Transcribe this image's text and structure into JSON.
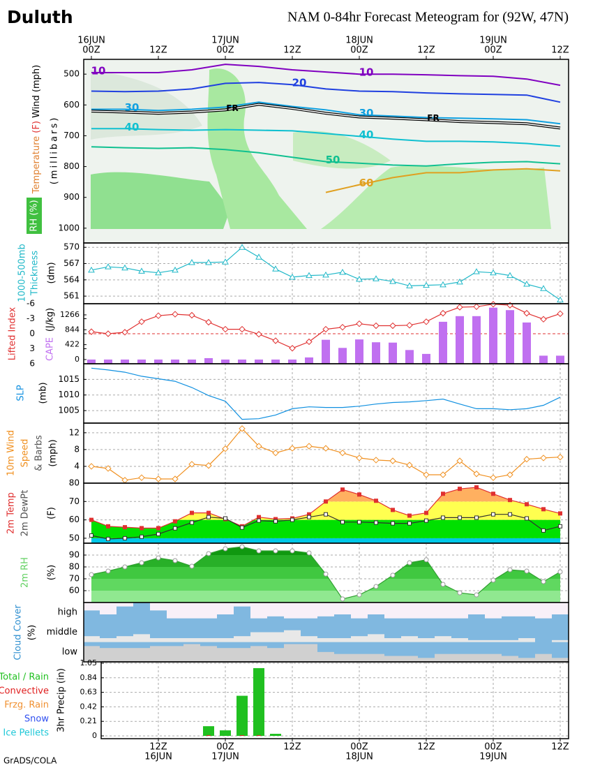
{
  "header": {
    "location": "Duluth",
    "title": "NAM 0-84hr Forecast Meteogram for (92W, 47N)"
  },
  "footer": "GrADS/COLA",
  "time_axis": {
    "hours": [
      "00Z",
      null,
      null,
      null,
      "12Z",
      null,
      null,
      null,
      "00Z",
      null,
      null,
      null,
      "12Z",
      null,
      null,
      null,
      "00Z",
      null,
      null,
      null,
      "12Z",
      null,
      null,
      null,
      "00Z",
      null,
      null,
      null,
      "12Z"
    ],
    "top_days": [
      "16JUN",
      null,
      null,
      null,
      null,
      null,
      null,
      null,
      "17JUN",
      null,
      null,
      null,
      null,
      null,
      null,
      null,
      "18JUN",
      null,
      null,
      null,
      null,
      null,
      null,
      null,
      "19JUN",
      null,
      null,
      null,
      null
    ],
    "bottom_hours": [
      null,
      null,
      null,
      null,
      "12Z",
      null,
      null,
      null,
      "00Z",
      null,
      null,
      null,
      "12Z",
      null,
      null,
      null,
      "00Z",
      null,
      null,
      null,
      "12Z",
      null,
      null,
      null,
      "00Z",
      null,
      null,
      null,
      "12Z"
    ],
    "bottom_days": [
      null,
      null,
      null,
      null,
      "16JUN",
      null,
      null,
      null,
      "17JUN",
      null,
      null,
      null,
      null,
      null,
      null,
      null,
      "18JUN",
      null,
      null,
      null,
      null,
      null,
      null,
      null,
      "19JUN",
      null,
      null,
      null,
      null
    ]
  },
  "chart_data": [
    {
      "type": "contour",
      "axis_labels": [
        "Temperature",
        "(F)",
        "Wind (mph)",
        "(millibars)",
        "RH (%)"
      ],
      "ylim": [
        1048,
        452
      ],
      "yticks": [
        500,
        600,
        700,
        800,
        900,
        1000
      ],
      "series": [
        {
          "name": "10",
          "color": "#8000c0",
          "values": [
            495,
            495,
            495,
            486,
            468,
            475,
            486,
            493,
            500,
            500,
            502,
            505,
            507,
            516,
            536
          ]
        },
        {
          "name": "20",
          "color": "#2040e0",
          "values": [
            555,
            557,
            555,
            548,
            530,
            527,
            534,
            548,
            555,
            557,
            561,
            564,
            566,
            568,
            591
          ]
        },
        {
          "name": "30",
          "color": "#10a0e0",
          "values": [
            614,
            614,
            618,
            614,
            607,
            591,
            605,
            616,
            632,
            636,
            641,
            643,
            645,
            648,
            661
          ]
        },
        {
          "name": "FR",
          "color": "#000000",
          "line_style": "double",
          "values": [
            620,
            623,
            627,
            623,
            616,
            598,
            611,
            627,
            639,
            643,
            648,
            654,
            657,
            661,
            675
          ]
        },
        {
          "name": "40",
          "color": "#10c0d0",
          "values": [
            677,
            677,
            680,
            682,
            680,
            682,
            684,
            693,
            702,
            711,
            718,
            718,
            720,
            725,
            734
          ]
        },
        {
          "name": "50",
          "color": "#10c090",
          "values": [
            736,
            739,
            741,
            739,
            745,
            755,
            770,
            784,
            789,
            795,
            798,
            791,
            786,
            784,
            791
          ]
        },
        {
          "name": "60",
          "color": "#e0a020",
          "values": [
            null,
            null,
            null,
            null,
            null,
            null,
            null,
            884,
            859,
            836,
            820,
            820,
            811,
            807,
            814
          ]
        }
      ]
    },
    {
      "type": "line",
      "axis_labels": [
        "1000-500mb",
        "Thickness",
        "(dm)"
      ],
      "grid": true,
      "ylim": [
        559.6,
        570.8
      ],
      "yticks": [
        561,
        564,
        567,
        570
      ],
      "series": [
        {
          "name": "Thickness",
          "color": "#20b8c8",
          "marker": "triangle",
          "marker_fill": "#ffffff",
          "values": [
            565.8,
            566.4,
            566.2,
            565.6,
            565.3,
            565.8,
            567.2,
            567.2,
            567.3,
            570.0,
            568.2,
            566.0,
            564.5,
            564.8,
            564.9,
            565.4,
            564.1,
            564.2,
            563.7,
            562.9,
            563.0,
            563.1,
            563.6,
            565.5,
            565.3,
            564.8,
            563.2,
            562.4,
            560.3
          ]
        }
      ]
    },
    {
      "type": "line",
      "axis_labels": [
        "Lifted Index",
        "CAPE",
        "(J/kg)"
      ],
      "reference_line": 0,
      "ylim": [
        6,
        -6
      ],
      "yticks": [
        -6,
        -3,
        0,
        3,
        6
      ],
      "y2lim": [
        -119,
        1582
      ],
      "y2ticks": [
        0,
        422,
        844,
        1266
      ],
      "series": [
        {
          "name": "Lifted Index",
          "color": "#e03030",
          "marker": "diamond",
          "marker_fill": "#ffffff",
          "values": [
            -0.4,
            0,
            -0.3,
            -2.4,
            -3.6,
            -3.9,
            -3.7,
            -2.3,
            -0.9,
            -0.9,
            0.1,
            1.4,
            2.9,
            1.6,
            -0.9,
            -1.3,
            -2,
            -1.6,
            -1.6,
            -1.7,
            -2.4,
            -4.1,
            -5.3,
            -5.4,
            -5.9,
            -5.7,
            -4.1,
            -2.9,
            -4.0
          ]
        },
        {
          "name": "CAPE",
          "color": "#c070f0",
          "type": "bar",
          "axis": "y2",
          "values": [
            0,
            0,
            0,
            0,
            0,
            0,
            0,
            40,
            0,
            0,
            0,
            0,
            0,
            60,
            560,
            330,
            570,
            490,
            480,
            270,
            160,
            1070,
            1230,
            1230,
            1470,
            1400,
            1050,
            110,
            110
          ]
        }
      ]
    },
    {
      "type": "line",
      "axis_labels": [
        "SLP",
        "(mb)"
      ],
      "grid": true,
      "ylim": [
        1001,
        1020
      ],
      "yticks": [
        1005,
        1010,
        1015
      ],
      "series": [
        {
          "name": "SLP",
          "color": "#1090e0",
          "marker": "none",
          "values": [
            1018.6,
            1018,
            1017.3,
            1016,
            1015.2,
            1014.4,
            1012.4,
            1009.8,
            1008,
            1002.2,
            1002.4,
            1003.6,
            1005.6,
            1006.2,
            1006,
            1006,
            1006.4,
            1007.1,
            1007.6,
            1007.8,
            1008.2,
            1008.7,
            1007.1,
            1005.6,
            1005.6,
            1005.3,
            1005.6,
            1006.7,
            1009.3
          ]
        }
      ]
    },
    {
      "type": "line",
      "axis_labels": [
        "10m Wind",
        "Speed",
        "& Barbs",
        "(mph)"
      ],
      "grid": true,
      "ylim": [
        0,
        14.3
      ],
      "yticks": [
        4,
        8,
        12
      ],
      "series": [
        {
          "name": "10m Wind Speed",
          "color": "#f09020",
          "marker": "diamond",
          "marker_fill": "#ffffff",
          "values": [
            4,
            3.5,
            0.7,
            1.3,
            1,
            1,
            4.5,
            4.2,
            8.2,
            13,
            8.8,
            7.2,
            8.3,
            8.8,
            8.3,
            7.2,
            6,
            5.5,
            5.3,
            4.3,
            2,
            2,
            5.3,
            2.2,
            1.3,
            2,
            5.7,
            6,
            6.2
          ]
        }
      ]
    },
    {
      "type": "area",
      "axis_labels": [
        "2m Temp",
        "2m DewPt",
        "(F)"
      ],
      "grid": true,
      "ylim": [
        47.3,
        80
      ],
      "yticks": [
        50,
        60,
        70,
        80
      ],
      "fill_thresholds": [
        50,
        60,
        70
      ],
      "fill_colors": [
        "#00c8e8",
        "#00e000",
        "#ffff50",
        "#ffb060"
      ],
      "series": [
        {
          "name": "2m Temp",
          "color": "#e03030",
          "marker": "square",
          "marker_fill": "#e03030",
          "fill": true,
          "values": [
            60,
            56.5,
            56,
            55.5,
            55.5,
            59.2,
            63.8,
            63.8,
            60.4,
            56.5,
            61.5,
            60.4,
            60.8,
            63,
            70,
            76.5,
            73.8,
            70.4,
            65.4,
            62.3,
            63.8,
            74.2,
            76.9,
            77.7,
            74.2,
            70.8,
            68.5,
            65.8,
            63.5
          ]
        },
        {
          "name": "2m DewPt",
          "color": "#303030",
          "marker": "square",
          "marker_fill": "#ffffff",
          "values": [
            51.5,
            49.6,
            50,
            50.8,
            52.3,
            55.4,
            58.5,
            61.5,
            60.8,
            55.8,
            59.6,
            59.2,
            60,
            61.5,
            63,
            58.8,
            58.8,
            58.5,
            58.1,
            58.1,
            59.6,
            61.2,
            61.2,
            61.2,
            63,
            63,
            60.8,
            54.2,
            56.5
          ]
        }
      ]
    },
    {
      "type": "area",
      "axis_labels": [
        "2m RH",
        "(%)"
      ],
      "grid": true,
      "ylim": [
        50,
        100
      ],
      "yticks": [
        60,
        70,
        80,
        90
      ],
      "fill_thresholds": [
        60,
        70,
        80,
        90
      ],
      "fill_colors": [
        "#90e890",
        "#60d860",
        "#40c840",
        "#28b028",
        "#109810"
      ],
      "series": [
        {
          "name": "2m RH",
          "color": "#30a030",
          "marker": "circle",
          "marker_fill": "#ffffff",
          "fill": true,
          "values": [
            73.5,
            76.5,
            80,
            83.5,
            87.6,
            85.3,
            80.6,
            91.2,
            95.3,
            97,
            93.5,
            93.5,
            93.5,
            91.8,
            74,
            53,
            56.5,
            63.5,
            73,
            83.5,
            86,
            65.3,
            58.2,
            56.5,
            68.8,
            77.6,
            76.5,
            67.6,
            75.9
          ]
        }
      ]
    },
    {
      "type": "cloud",
      "axis_labels": [
        "Cloud Cover",
        "(%)"
      ],
      "ylim": [
        0,
        100
      ],
      "background": "#80b8e0",
      "series": [
        {
          "name": "high",
          "color": "#f8f0f8",
          "values": [
            40,
            60,
            20,
            0,
            40,
            80,
            80,
            80,
            60,
            20,
            80,
            70,
            80,
            80,
            70,
            60,
            80,
            60,
            80,
            80,
            80,
            80,
            80,
            60,
            80,
            70,
            70,
            80,
            60
          ]
        },
        {
          "name": "middle",
          "color": "#e8e8e8",
          "values": [
            30,
            20,
            30,
            40,
            20,
            20,
            20,
            20,
            20,
            30,
            50,
            50,
            60,
            30,
            20,
            20,
            30,
            40,
            20,
            30,
            20,
            30,
            20,
            10,
            10,
            10,
            20,
            0,
            10
          ]
        },
        {
          "name": "low",
          "color": "#d0d0d0",
          "values": [
            80,
            70,
            70,
            70,
            80,
            80,
            90,
            80,
            70,
            70,
            80,
            70,
            90,
            90,
            50,
            40,
            40,
            40,
            30,
            30,
            20,
            40,
            40,
            40,
            40,
            30,
            20,
            40,
            20
          ]
        }
      ]
    },
    {
      "type": "bar",
      "axis_labels": [
        "3hr Precip (in)"
      ],
      "grid": true,
      "ylim": [
        0,
        1.05
      ],
      "yticks": [
        0,
        0.21,
        0.42,
        0.63,
        0.84,
        1.05
      ],
      "series": [
        {
          "name": "Total / Rain",
          "color": "#20c020",
          "values": [
            0,
            0,
            0,
            0,
            0,
            0,
            0,
            0.14,
            0.08,
            0.58,
            0.98,
            0.03,
            0,
            0,
            0,
            0,
            0,
            0,
            0,
            0,
            0,
            0,
            0,
            0,
            0,
            0,
            0,
            0,
            0
          ]
        },
        {
          "name": "Convective",
          "color": "#e02020",
          "values": [
            0,
            0,
            0,
            0,
            0,
            0,
            0,
            0.01,
            0,
            0.01,
            0.01,
            0,
            0,
            0,
            0,
            0,
            0,
            0,
            0,
            0,
            0,
            0,
            0,
            0,
            0,
            0,
            0,
            0,
            0
          ]
        },
        {
          "name": "Frzg. Rain",
          "color": "#f09030",
          "values": [
            0,
            0,
            0,
            0,
            0,
            0,
            0,
            0,
            0,
            0,
            0,
            0,
            0,
            0,
            0,
            0,
            0,
            0,
            0,
            0,
            0,
            0,
            0,
            0,
            0,
            0,
            0,
            0,
            0
          ]
        },
        {
          "name": "Snow",
          "color": "#3050f0",
          "values": [
            0,
            0,
            0,
            0,
            0,
            0,
            0,
            0,
            0,
            0,
            0,
            0,
            0,
            0,
            0,
            0,
            0,
            0,
            0,
            0,
            0,
            0,
            0,
            0,
            0,
            0,
            0,
            0,
            0
          ]
        },
        {
          "name": "Ice Pellets",
          "color": "#20c8d8",
          "values": [
            0,
            0,
            0,
            0,
            0,
            0,
            0,
            0,
            0,
            0,
            0,
            0,
            0,
            0,
            0,
            0,
            0,
            0,
            0,
            0,
            0,
            0,
            0,
            0,
            0,
            0,
            0,
            0,
            0
          ]
        }
      ]
    }
  ]
}
